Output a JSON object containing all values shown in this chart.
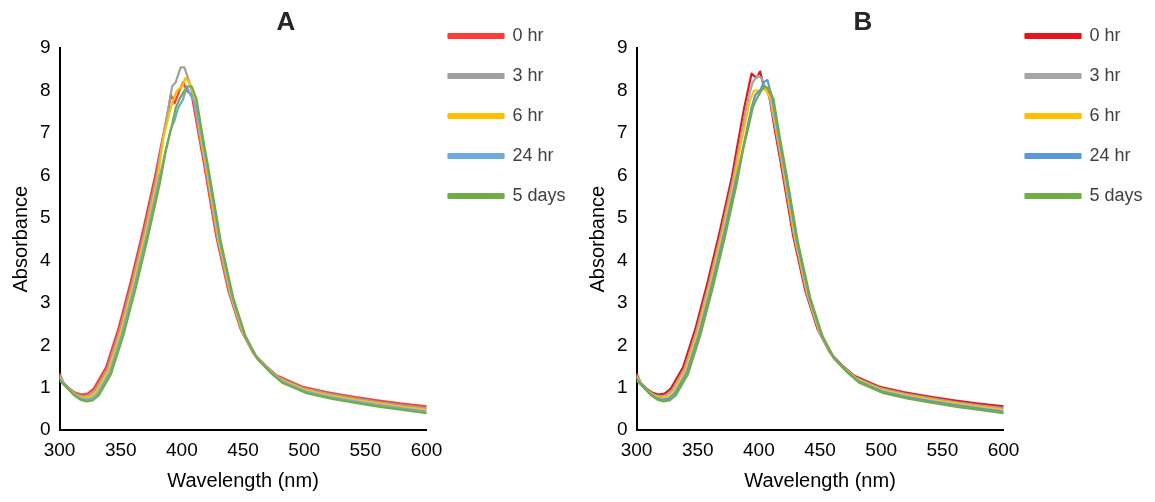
{
  "chart_data": [
    {
      "type": "line",
      "title": "A",
      "xlabel": "Wavelength (nm)",
      "ylabel": "Absorbance",
      "xlim": [
        300,
        600
      ],
      "xticks": [
        300,
        350,
        400,
        450,
        500,
        550,
        600
      ],
      "ylim": [
        0,
        9
      ],
      "yticks": [
        0,
        1,
        2,
        3,
        4,
        5,
        6,
        7,
        8,
        9
      ],
      "grid": false,
      "legend": "right",
      "marker": "none",
      "line_style": "solid",
      "series": [
        {
          "name": "0 hr",
          "color": "#ff3b3b",
          "x": [
            300,
            303,
            308,
            313,
            318,
            323,
            328,
            338,
            348,
            358,
            368,
            378,
            383,
            388,
            391,
            394,
            398,
            401,
            404,
            408,
            413,
            418,
            428,
            438,
            448,
            458,
            468,
            478,
            498,
            518,
            538,
            558,
            578,
            600
          ],
          "values": [
            1.33,
            1.13,
            0.98,
            0.88,
            0.84,
            0.86,
            0.98,
            1.48,
            2.38,
            3.48,
            4.68,
            5.98,
            6.7,
            7.4,
            7.9,
            7.7,
            8.0,
            8.2,
            8.0,
            7.9,
            7.08,
            6.28,
            4.58,
            3.28,
            2.38,
            1.83,
            1.53,
            1.28,
            1.03,
            0.9,
            0.8,
            0.71,
            0.63,
            0.56
          ]
        },
        {
          "name": "3 hr",
          "color": "#a0a0a0",
          "x": [
            300,
            304,
            309,
            314,
            319,
            324,
            329,
            339,
            349,
            359,
            369,
            379,
            384,
            389,
            392,
            395,
            399,
            402,
            405,
            409,
            414,
            419,
            429,
            439,
            449,
            459,
            469,
            479,
            499,
            519,
            539,
            559,
            579,
            600
          ],
          "values": [
            1.29,
            1.09,
            0.94,
            0.84,
            0.8,
            0.82,
            0.94,
            1.44,
            2.34,
            3.44,
            4.64,
            5.94,
            6.8,
            7.6,
            8.1,
            8.2,
            8.55,
            8.55,
            8.3,
            7.9,
            7.04,
            6.24,
            4.54,
            3.24,
            2.34,
            1.79,
            1.49,
            1.24,
            0.99,
            0.86,
            0.76,
            0.67,
            0.59,
            0.52
          ]
        },
        {
          "name": "6 hr",
          "color": "#ffc000",
          "x": [
            300,
            305,
            310,
            315,
            320,
            325,
            330,
            340,
            350,
            360,
            370,
            380,
            385,
            390,
            393,
            396,
            400,
            403,
            406,
            410,
            415,
            420,
            430,
            440,
            450,
            460,
            470,
            480,
            500,
            520,
            540,
            560,
            580,
            600
          ],
          "values": [
            1.25,
            1.05,
            0.9,
            0.8,
            0.76,
            0.78,
            0.9,
            1.4,
            2.3,
            3.4,
            4.6,
            5.9,
            6.9,
            7.5,
            7.8,
            8.0,
            8.1,
            8.3,
            8.2,
            7.9,
            7.0,
            6.2,
            4.5,
            3.2,
            2.3,
            1.75,
            1.45,
            1.2,
            0.95,
            0.82,
            0.72,
            0.63,
            0.55,
            0.48
          ]
        },
        {
          "name": "24 hr",
          "color": "#6fa8dc",
          "x": [
            300,
            306,
            311,
            316,
            321,
            326,
            331,
            341,
            351,
            361,
            371,
            381,
            386,
            391,
            394,
            397,
            401,
            404,
            407,
            411,
            416,
            421,
            431,
            441,
            451,
            461,
            471,
            481,
            501,
            521,
            541,
            561,
            581,
            600
          ],
          "values": [
            1.21,
            1.01,
            0.86,
            0.76,
            0.72,
            0.74,
            0.86,
            1.36,
            2.26,
            3.36,
            4.56,
            5.86,
            6.5,
            7.1,
            7.3,
            7.6,
            7.8,
            8.1,
            7.9,
            7.7,
            6.96,
            6.16,
            4.46,
            3.16,
            2.26,
            1.71,
            1.41,
            1.16,
            0.91,
            0.78,
            0.68,
            0.59,
            0.51,
            0.44
          ]
        },
        {
          "name": "5 days",
          "color": "#70ad47",
          "x": [
            300,
            307,
            312,
            317,
            322,
            327,
            332,
            342,
            352,
            362,
            372,
            382,
            387,
            392,
            395,
            398,
            402,
            405,
            408,
            412,
            417,
            422,
            432,
            442,
            452,
            462,
            472,
            482,
            502,
            522,
            542,
            562,
            582,
            600
          ],
          "values": [
            1.17,
            0.97,
            0.82,
            0.72,
            0.68,
            0.7,
            0.82,
            1.32,
            2.22,
            3.32,
            4.52,
            5.82,
            6.6,
            7.2,
            7.6,
            7.8,
            8.0,
            8.1,
            8.1,
            7.8,
            6.92,
            6.12,
            4.42,
            3.12,
            2.22,
            1.67,
            1.37,
            1.12,
            0.87,
            0.74,
            0.64,
            0.55,
            0.47,
            0.4
          ]
        }
      ]
    },
    {
      "type": "line",
      "title": "B",
      "xlabel": "Wavelength (nm)",
      "ylabel": "Absorbance",
      "xlim": [
        300,
        600
      ],
      "xticks": [
        300,
        350,
        400,
        450,
        500,
        550,
        600
      ],
      "ylim": [
        0,
        9
      ],
      "yticks": [
        0,
        1,
        2,
        3,
        4,
        5,
        6,
        7,
        8,
        9
      ],
      "grid": false,
      "legend": "right",
      "marker": "none",
      "line_style": "solid",
      "series": [
        {
          "name": "0 hr",
          "color": "#e8141c",
          "x": [
            300,
            303,
            308,
            313,
            318,
            323,
            328,
            338,
            348,
            358,
            368,
            378,
            383,
            388,
            391,
            394,
            398,
            401,
            404,
            408,
            413,
            418,
            428,
            438,
            448,
            458,
            468,
            478,
            498,
            518,
            538,
            558,
            578,
            600
          ],
          "values": [
            1.33,
            1.13,
            0.98,
            0.88,
            0.84,
            0.86,
            0.98,
            1.48,
            2.38,
            3.48,
            4.68,
            5.98,
            6.8,
            7.6,
            8.0,
            8.4,
            8.3,
            8.45,
            8.1,
            7.95,
            7.08,
            6.28,
            4.58,
            3.28,
            2.38,
            1.83,
            1.53,
            1.28,
            1.03,
            0.9,
            0.8,
            0.71,
            0.63,
            0.56
          ]
        },
        {
          "name": "3 hr",
          "color": "#a5a5a5",
          "x": [
            300,
            304,
            309,
            314,
            319,
            324,
            329,
            339,
            349,
            359,
            369,
            379,
            384,
            389,
            392,
            395,
            399,
            402,
            405,
            409,
            414,
            419,
            429,
            439,
            449,
            459,
            469,
            479,
            499,
            519,
            539,
            559,
            579,
            600
          ],
          "values": [
            1.29,
            1.09,
            0.94,
            0.84,
            0.8,
            0.82,
            0.94,
            1.44,
            2.34,
            3.44,
            4.64,
            5.94,
            6.7,
            7.5,
            7.9,
            8.2,
            8.35,
            8.3,
            8.1,
            7.8,
            7.04,
            6.24,
            4.54,
            3.24,
            2.34,
            1.79,
            1.49,
            1.24,
            0.99,
            0.86,
            0.76,
            0.67,
            0.59,
            0.52
          ]
        },
        {
          "name": "6 hr",
          "color": "#ffc000",
          "x": [
            300,
            305,
            310,
            315,
            320,
            325,
            330,
            340,
            350,
            360,
            370,
            380,
            385,
            390,
            393,
            396,
            400,
            403,
            406,
            410,
            415,
            420,
            430,
            440,
            450,
            460,
            470,
            480,
            500,
            520,
            540,
            560,
            580,
            600
          ],
          "values": [
            1.25,
            1.05,
            0.9,
            0.8,
            0.76,
            0.78,
            0.9,
            1.4,
            2.3,
            3.4,
            4.6,
            5.9,
            6.7,
            7.4,
            7.8,
            8.0,
            8.0,
            8.05,
            8.0,
            7.8,
            7.0,
            6.2,
            4.5,
            3.2,
            2.3,
            1.75,
            1.45,
            1.2,
            0.95,
            0.82,
            0.72,
            0.63,
            0.55,
            0.48
          ]
        },
        {
          "name": "24 hr",
          "color": "#5b9bd5",
          "x": [
            300,
            306,
            311,
            316,
            321,
            326,
            331,
            341,
            351,
            361,
            371,
            381,
            386,
            391,
            394,
            397,
            401,
            404,
            407,
            411,
            416,
            421,
            431,
            441,
            451,
            461,
            471,
            481,
            501,
            521,
            541,
            561,
            581,
            600
          ],
          "values": [
            1.21,
            1.01,
            0.86,
            0.76,
            0.72,
            0.74,
            0.86,
            1.36,
            2.26,
            3.36,
            4.56,
            5.86,
            6.5,
            7.2,
            7.6,
            7.9,
            8.0,
            8.2,
            8.25,
            7.8,
            6.96,
            6.16,
            4.46,
            3.16,
            2.26,
            1.71,
            1.41,
            1.16,
            0.91,
            0.78,
            0.68,
            0.59,
            0.51,
            0.44
          ]
        },
        {
          "name": "5 days",
          "color": "#70ad47",
          "x": [
            300,
            307,
            312,
            317,
            322,
            327,
            332,
            342,
            352,
            362,
            372,
            382,
            387,
            392,
            395,
            398,
            402,
            405,
            408,
            412,
            417,
            422,
            432,
            442,
            452,
            462,
            472,
            482,
            502,
            522,
            542,
            562,
            582,
            600
          ],
          "values": [
            1.17,
            0.97,
            0.82,
            0.72,
            0.68,
            0.7,
            0.82,
            1.32,
            2.22,
            3.32,
            4.52,
            5.82,
            6.6,
            7.2,
            7.6,
            7.8,
            8.0,
            8.1,
            8.05,
            7.8,
            6.92,
            6.12,
            4.42,
            3.12,
            2.22,
            1.67,
            1.37,
            1.12,
            0.87,
            0.74,
            0.64,
            0.55,
            0.47,
            0.4
          ]
        }
      ]
    }
  ]
}
